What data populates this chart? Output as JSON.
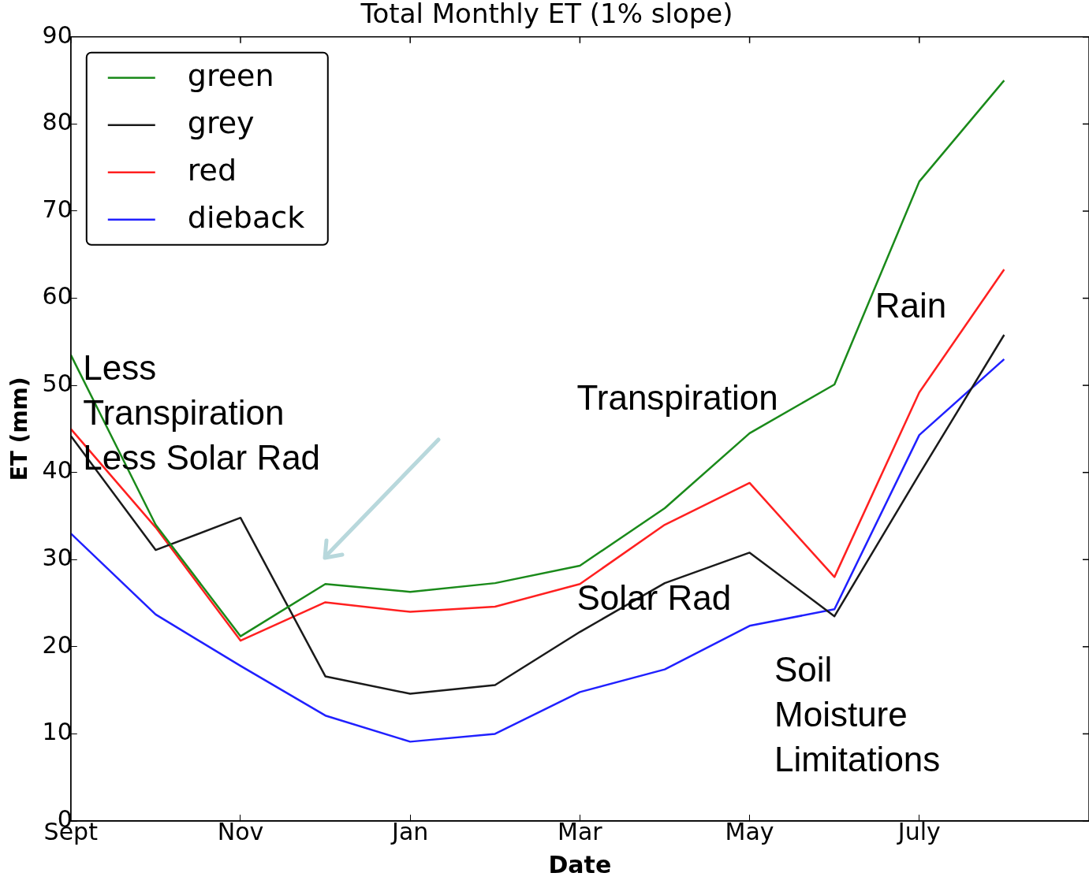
{
  "chart_data": {
    "type": "line",
    "title": "Total Monthly ET (1% slope)",
    "xlabel": "Date",
    "ylabel": "ET (mm)",
    "categories": [
      "Sept",
      null,
      "Nov",
      null,
      "Jan",
      null,
      "Mar",
      null,
      "May",
      null,
      "July",
      null
    ],
    "ylim": [
      0,
      90
    ],
    "yticks": [
      0,
      10,
      20,
      30,
      40,
      50,
      60,
      70,
      80,
      90
    ],
    "series": [
      {
        "name": "green",
        "color": "#1a8a1a",
        "values": [
          53.5,
          34.0,
          21.2,
          27.2,
          26.3,
          27.3,
          29.3,
          35.9,
          44.5,
          50.1,
          73.4,
          85.0
        ]
      },
      {
        "name": "grey",
        "color": "#1a1a1a",
        "values": [
          44.2,
          31.1,
          34.8,
          16.6,
          14.6,
          15.6,
          21.7,
          27.3,
          30.8,
          23.5,
          39.8,
          55.8
        ]
      },
      {
        "name": "red",
        "color": "#ff2020",
        "values": [
          45.0,
          33.7,
          20.7,
          25.1,
          24.0,
          24.6,
          27.2,
          34.0,
          38.8,
          28.0,
          49.2,
          63.3
        ]
      },
      {
        "name": "dieback",
        "color": "#2020ff",
        "values": [
          33.0,
          23.7,
          17.8,
          12.1,
          9.1,
          10.0,
          14.8,
          17.4,
          22.4,
          24.3,
          44.3,
          53.0
        ]
      }
    ],
    "annotations": [
      "Less\nTranspiration\nLess Solar Rad",
      "Transpiration",
      "Rain",
      "Solar Rad",
      "Soil\nMoisture\nLimitations"
    ],
    "grid": false,
    "legend": "top left",
    "marker": "none",
    "line_style": "solid"
  }
}
